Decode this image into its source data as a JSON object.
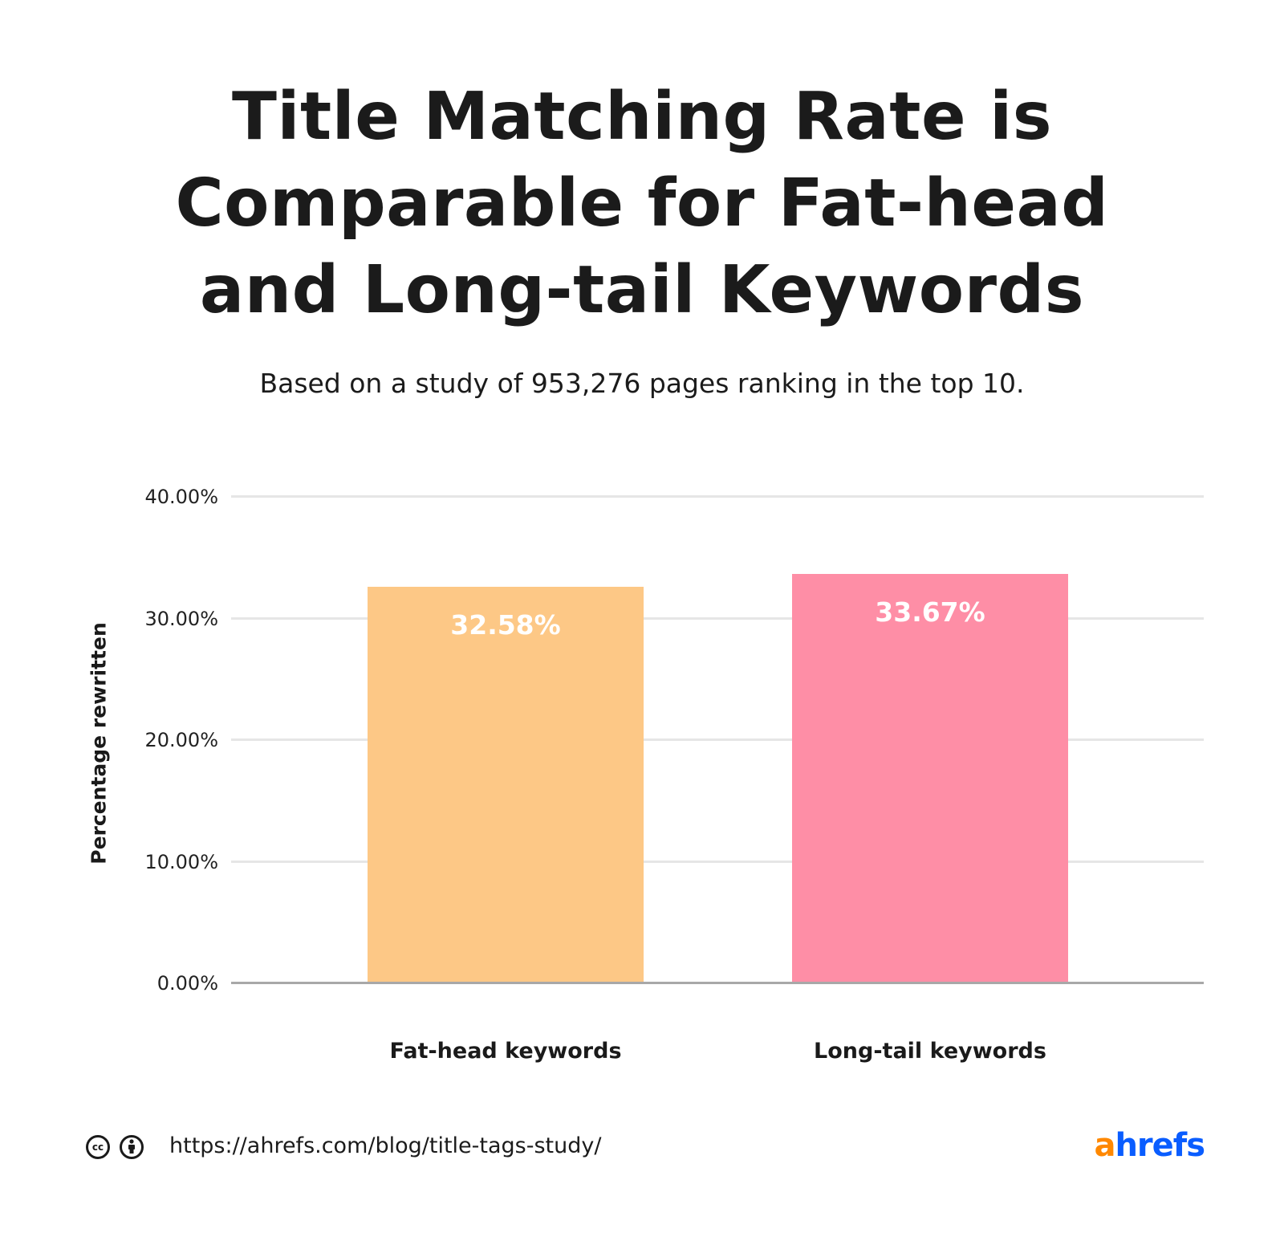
{
  "header": {
    "title_lines": [
      "Title Matching Rate is",
      "Comparable for Fat-head",
      "and Long-tail Keywords"
    ],
    "subtitle": "Based on a study of 953,276 pages ranking in the top 10."
  },
  "chart_data": {
    "type": "bar",
    "title": "Title Matching Rate is Comparable for Fat-head and Long-tail Keywords",
    "subtitle": "Based on a study of 953,276 pages ranking in the top 10.",
    "categories": [
      "Fat-head keywords",
      "Long-tail keywords"
    ],
    "values": [
      32.58,
      33.67
    ],
    "value_labels": [
      "32.58%",
      "33.67%"
    ],
    "colors": [
      "#fdc886",
      "#fe8ea6"
    ],
    "xlabel": "",
    "ylabel": "Percentage rewritten",
    "ylim": [
      0,
      40
    ],
    "yticks": [
      "0.00%",
      "10.00%",
      "20.00%",
      "30.00%",
      "40.00%"
    ],
    "grid": true,
    "legend": "none"
  },
  "footer": {
    "license_icons": [
      "creative-commons-icon",
      "attribution-icon"
    ],
    "cc_text": "cc",
    "url": "https://ahrefs.com/blog/title-tags-study/",
    "logo_a": "a",
    "logo_rest": "hrefs"
  }
}
